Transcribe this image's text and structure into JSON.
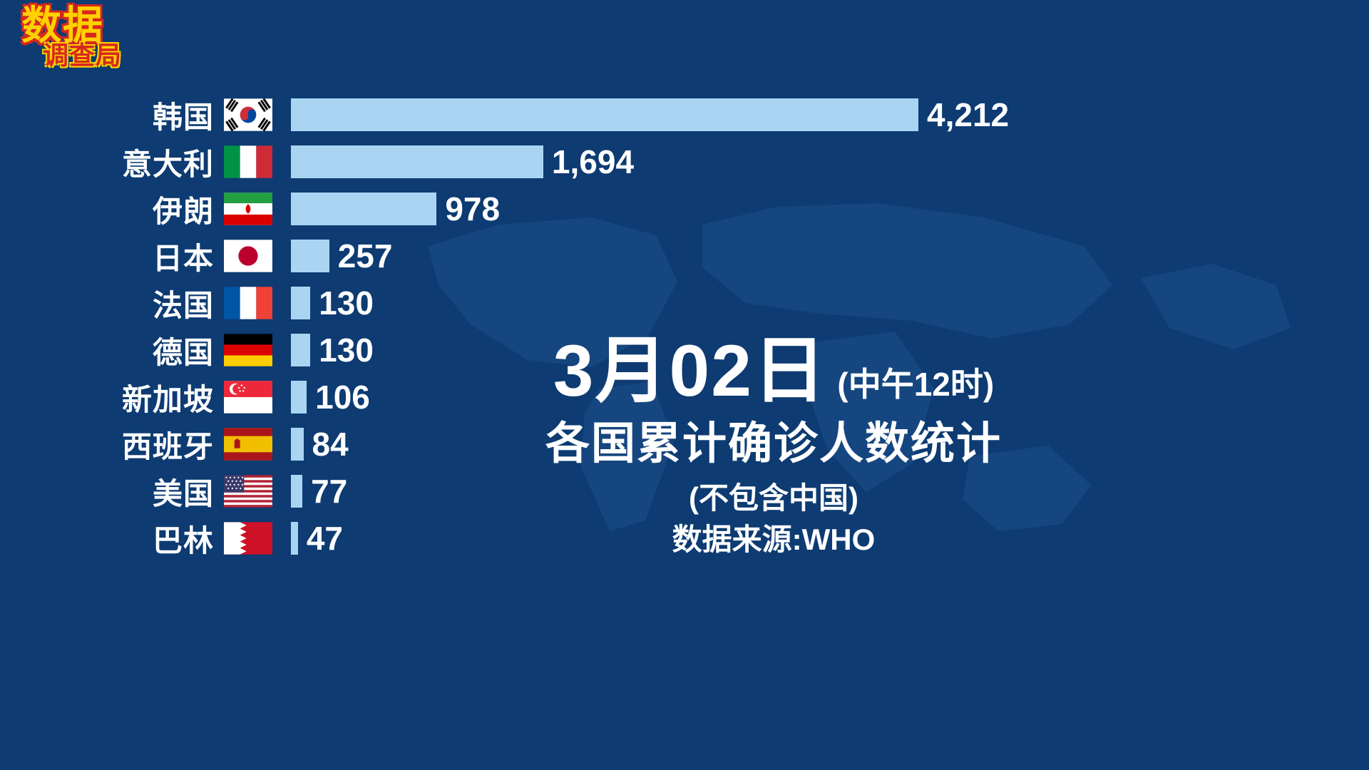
{
  "logo": {
    "top": "数据",
    "bottom": "调查局"
  },
  "caption": {
    "date": "3月02日",
    "time_note": "(中午12时)",
    "title": "各国累计确诊人数统计",
    "exclusion_note": "(不包含中国)",
    "source": "数据来源:WHO"
  },
  "colors": {
    "background": "#0d3b72",
    "bar": "#a9d5f2",
    "text": "#ffffff",
    "logo_yellow": "#ffd100",
    "logo_red": "#d6281e"
  },
  "chart_data": {
    "type": "bar",
    "orientation": "horizontal",
    "title": "3月02日(中午12时) 各国累计确诊人数统计",
    "subtitle": "(不包含中国)",
    "source": "数据来源:WHO",
    "xlim": [
      0,
      4212
    ],
    "grid": false,
    "legend": false,
    "bar_color": "#a9d5f2",
    "categories": [
      "韩国",
      "意大利",
      "伊朗",
      "日本",
      "法国",
      "德国",
      "新加坡",
      "西班牙",
      "美国",
      "巴林"
    ],
    "values": [
      4212,
      1694,
      978,
      257,
      130,
      130,
      106,
      84,
      77,
      47
    ],
    "value_labels": [
      "4,212",
      "1,694",
      "978",
      "257",
      "130",
      "130",
      "106",
      "84",
      "77",
      "47"
    ],
    "flags": [
      "kr",
      "it",
      "ir",
      "jp",
      "fr",
      "de",
      "sg",
      "es",
      "us",
      "bh"
    ],
    "flag_names": [
      "south-korea",
      "italy",
      "iran",
      "japan",
      "france",
      "germany",
      "singapore",
      "spain",
      "united-states",
      "bahrain"
    ]
  }
}
